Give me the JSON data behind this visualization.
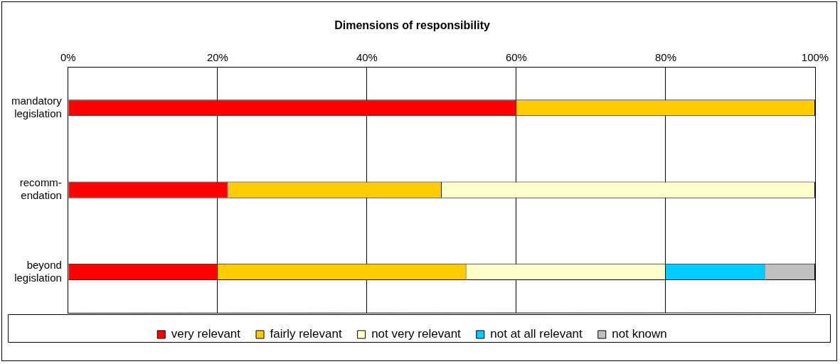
{
  "chart_data": {
    "type": "bar",
    "orientation": "horizontal",
    "stacked": true,
    "title": "Dimensions of responsibility",
    "categories": [
      "mandatory\nlegislation",
      "recomm-\nendation",
      "beyond\nlegislation"
    ],
    "series": [
      {
        "name": "very relevant",
        "color": "#ff0000",
        "values": [
          60,
          21.4,
          20
        ]
      },
      {
        "name": "fairly relevant",
        "color": "#ffcc00",
        "values": [
          40,
          28.6,
          33.3
        ]
      },
      {
        "name": "not very relevant",
        "color": "#ffffcc",
        "values": [
          0,
          50,
          26.7
        ]
      },
      {
        "name": "not at all relevant",
        "color": "#00ccff",
        "values": [
          0,
          0,
          13.3
        ]
      },
      {
        "name": "not known",
        "color": "#c0c0c0",
        "values": [
          0,
          0,
          6.7
        ]
      }
    ],
    "xlim": [
      0,
      100
    ],
    "xticks": [
      {
        "value": 0,
        "label": "0%"
      },
      {
        "value": 20,
        "label": "20%"
      },
      {
        "value": 40,
        "label": "40%"
      },
      {
        "value": 60,
        "label": "60%"
      },
      {
        "value": 80,
        "label": "80%"
      },
      {
        "value": 100,
        "label": "100%"
      }
    ],
    "grid": "x",
    "legend": "bottom"
  }
}
